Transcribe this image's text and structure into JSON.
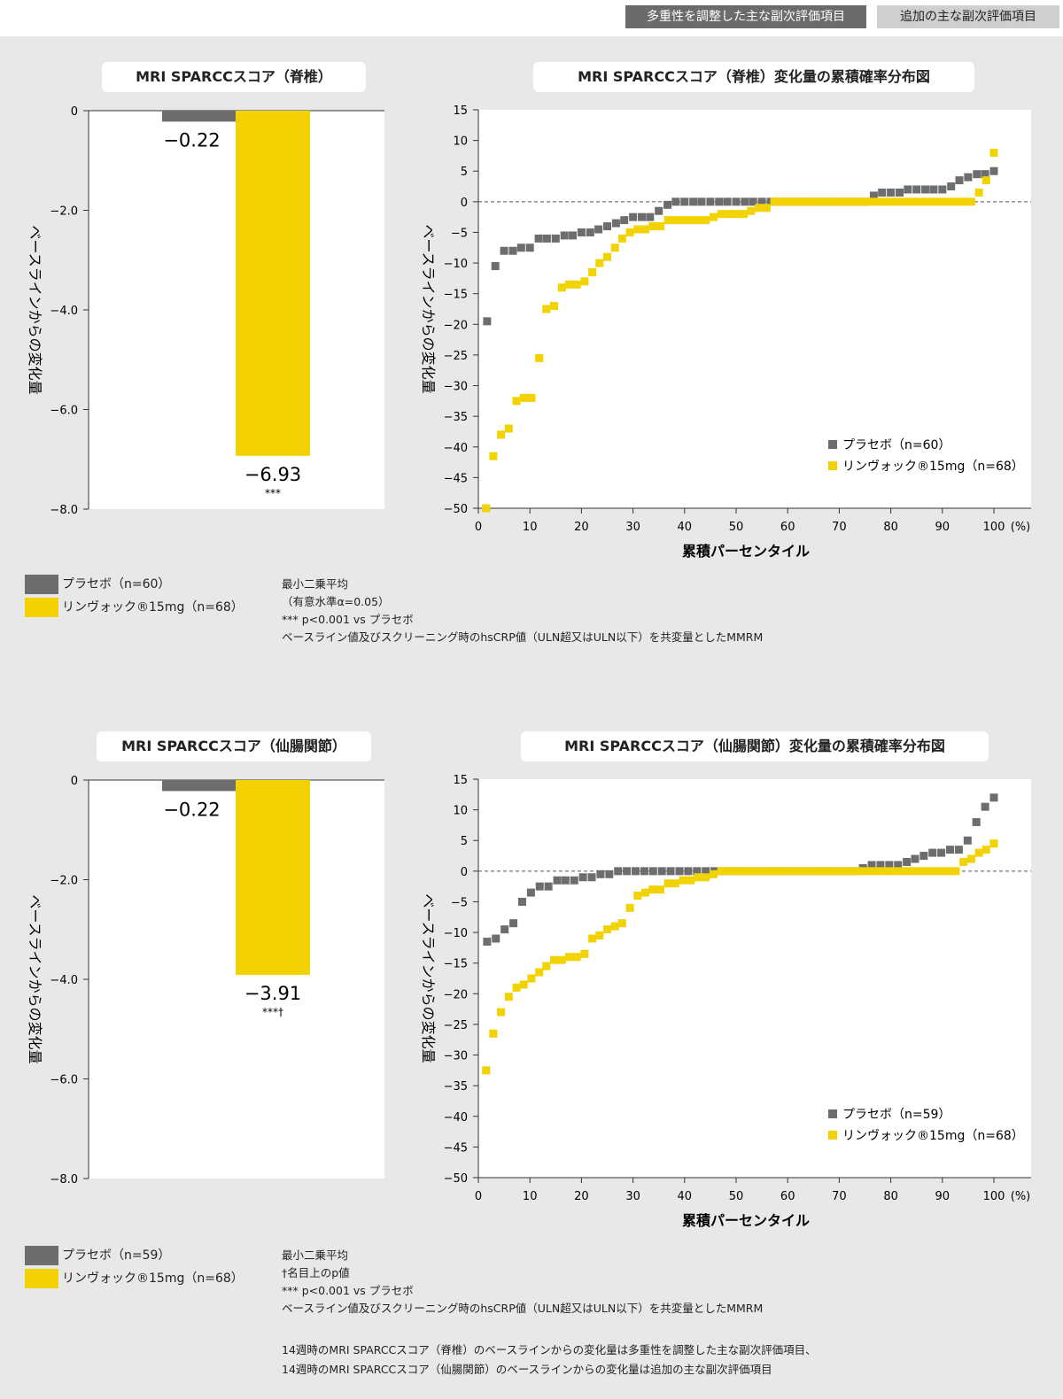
{
  "header": {
    "tag_primary": "多重性を調整した主な副次評価項目",
    "tag_secondary": "追加の主な副次評価項目"
  },
  "colors": {
    "placebo": "#6d6d6d",
    "drug": "#f2d200",
    "background": "#e8e8e8"
  },
  "chart_data": [
    {
      "type": "bar",
      "title": "MRI SPARCCスコア（脊椎）",
      "ylabel": "ベースラインからの変化量",
      "ylim": [
        -8.0,
        0
      ],
      "yticks": [
        "0",
        "−2.0",
        "−4.0",
        "−6.0",
        "−8.0"
      ],
      "series": [
        {
          "name": "プラセボ（n=60）",
          "value": -0.22,
          "label": "−0.22"
        },
        {
          "name": "リンヴォック®15mg（n=68）",
          "value": -6.93,
          "label": "−6.93",
          "annotation": "***"
        }
      ]
    },
    {
      "type": "scatter",
      "title": "MRI SPARCCスコア（脊椎）変化量の累積確率分布図",
      "xlabel": "累積パーセンタイル",
      "ylabel": "ベースラインからの変化量",
      "xlim": [
        0,
        100
      ],
      "ylim": [
        -50,
        15
      ],
      "xticks": [
        "0",
        "10",
        "20",
        "30",
        "40",
        "50",
        "60",
        "70",
        "80",
        "90",
        "100"
      ],
      "xunit": "(%)",
      "yticks": [
        "15",
        "10",
        "5",
        "0",
        "−5",
        "−10",
        "−15",
        "−20",
        "−25",
        "−30",
        "−35",
        "−40",
        "−45",
        "−50"
      ],
      "series": [
        {
          "name": "プラセボ（n=60）",
          "x": [
            1.7,
            3.3,
            5,
            6.7,
            8.3,
            10,
            11.7,
            13.3,
            15,
            16.7,
            18.3,
            20,
            21.7,
            23.3,
            25,
            26.7,
            28.3,
            30,
            31.7,
            33.3,
            35,
            36.7,
            38.3,
            40,
            41.7,
            43.3,
            45,
            46.7,
            48.3,
            50,
            51.7,
            53.3,
            55,
            56.7,
            58.3,
            60,
            61.7,
            63.3,
            65,
            66.7,
            68.3,
            70,
            71.7,
            73.3,
            75,
            76.7,
            78.3,
            80,
            81.7,
            83.3,
            85,
            86.7,
            88.3,
            90,
            91.7,
            93.3,
            95,
            96.7,
            98.3,
            100
          ],
          "y": [
            -19.5,
            -10.5,
            -8,
            -8,
            -7.5,
            -7.5,
            -6,
            -6,
            -6,
            -5.5,
            -5.5,
            -5,
            -5,
            -4.5,
            -4,
            -3.5,
            -3,
            -2.5,
            -2.5,
            -2.5,
            -1.5,
            -0.5,
            0,
            0,
            0,
            0,
            0,
            0,
            0,
            0,
            0,
            0,
            0,
            0,
            0,
            0,
            0,
            0,
            0,
            0,
            0,
            0,
            0,
            0,
            0,
            1,
            1.5,
            1.5,
            1.5,
            2,
            2,
            2,
            2,
            2,
            2.5,
            3.5,
            4,
            4.5,
            4.5,
            5
          ]
        },
        {
          "name": "リンヴォック®15mg（n=68）",
          "x": [
            1.5,
            2.9,
            4.4,
            5.9,
            7.4,
            8.8,
            10.3,
            11.8,
            13.2,
            14.7,
            16.2,
            17.6,
            19.1,
            20.6,
            22.1,
            23.5,
            25,
            26.5,
            27.9,
            29.4,
            30.9,
            32.4,
            33.8,
            35.3,
            36.8,
            38.2,
            39.7,
            41.2,
            42.6,
            44.1,
            45.6,
            47.1,
            48.5,
            50,
            51.5,
            52.9,
            54.4,
            55.9,
            57.4,
            58.8,
            60.3,
            61.8,
            63.2,
            64.7,
            66.2,
            67.6,
            69.1,
            70.6,
            72.1,
            73.5,
            75,
            76.5,
            77.9,
            79.4,
            80.9,
            82.4,
            83.8,
            85.3,
            86.8,
            88.2,
            89.7,
            91.2,
            92.6,
            94.1,
            95.6,
            97.1,
            98.5,
            100
          ],
          "y": [
            -50,
            -41.5,
            -38,
            -37,
            -32.5,
            -32,
            -32,
            -25.5,
            -17.5,
            -17,
            -14,
            -13.5,
            -13.5,
            -13,
            -11.5,
            -10,
            -9,
            -7.5,
            -6,
            -5,
            -4.5,
            -4.5,
            -4,
            -4,
            -3,
            -3,
            -3,
            -3,
            -3,
            -3,
            -2.5,
            -2,
            -2,
            -2,
            -2,
            -1.5,
            -1,
            -1,
            0,
            0,
            0,
            0,
            0,
            0,
            0,
            0,
            0,
            0,
            0,
            0,
            0,
            0,
            0,
            0,
            0,
            0,
            0,
            0,
            0,
            0,
            0,
            0,
            0,
            0,
            0,
            1.5,
            3.5,
            8
          ]
        }
      ]
    },
    {
      "type": "bar",
      "title": "MRI SPARCCスコア（仙腸関節）",
      "ylabel": "ベースラインからの変化量",
      "ylim": [
        -8.0,
        0
      ],
      "yticks": [
        "0",
        "−2.0",
        "−4.0",
        "−6.0",
        "−8.0"
      ],
      "series": [
        {
          "name": "プラセボ（n=59）",
          "value": -0.22,
          "label": "−0.22"
        },
        {
          "name": "リンヴォック®15mg（n=68）",
          "value": -3.91,
          "label": "−3.91",
          "annotation": "***†"
        }
      ]
    },
    {
      "type": "scatter",
      "title": "MRI SPARCCスコア（仙腸関節）変化量の累積確率分布図",
      "xlabel": "累積パーセンタイル",
      "ylabel": "ベースラインからの変化量",
      "xlim": [
        0,
        100
      ],
      "ylim": [
        -50,
        15
      ],
      "xticks": [
        "0",
        "10",
        "20",
        "30",
        "40",
        "50",
        "60",
        "70",
        "80",
        "90",
        "100"
      ],
      "xunit": "(%)",
      "yticks": [
        "15",
        "10",
        "5",
        "0",
        "−5",
        "−10",
        "−15",
        "−20",
        "−25",
        "−30",
        "−35",
        "−40",
        "−45",
        "−50"
      ],
      "series": [
        {
          "name": "プラセボ（n=59）",
          "x": [
            1.7,
            3.4,
            5.1,
            6.8,
            8.5,
            10.2,
            11.9,
            13.6,
            15.3,
            16.9,
            18.6,
            20.3,
            22,
            23.7,
            25.4,
            27.1,
            28.8,
            30.5,
            32.2,
            33.9,
            35.6,
            37.3,
            39,
            40.7,
            42.4,
            44.1,
            45.8,
            47.5,
            49.2,
            50.8,
            52.5,
            54.2,
            55.9,
            57.6,
            59.3,
            61,
            62.7,
            64.4,
            66.1,
            67.8,
            69.5,
            71.2,
            72.9,
            74.6,
            76.3,
            78,
            79.7,
            81.4,
            83.1,
            84.7,
            86.4,
            88.1,
            89.8,
            91.5,
            93.2,
            94.9,
            96.6,
            98.3,
            100
          ],
          "y": [
            -11.5,
            -11,
            -9.5,
            -8.5,
            -5,
            -3.5,
            -2.5,
            -2.5,
            -1.5,
            -1.5,
            -1.5,
            -1,
            -1,
            -0.5,
            -0.5,
            0,
            0,
            0,
            0,
            0,
            0,
            0,
            0,
            0,
            0,
            0,
            0,
            0,
            0,
            0,
            0,
            0,
            0,
            0,
            0,
            0,
            0,
            0,
            0,
            0,
            0,
            0,
            0,
            0.5,
            1,
            1,
            1,
            1,
            1.5,
            2,
            2.5,
            3,
            3,
            3.5,
            3.5,
            5,
            8,
            10.5,
            12
          ]
        },
        {
          "name": "リンヴォック®15mg（n=68）",
          "x": [
            1.5,
            2.9,
            4.4,
            5.9,
            7.4,
            8.8,
            10.3,
            11.8,
            13.2,
            14.7,
            16.2,
            17.6,
            19.1,
            20.6,
            22.1,
            23.5,
            25,
            26.5,
            27.9,
            29.4,
            30.9,
            32.4,
            33.8,
            35.3,
            36.8,
            38.2,
            39.7,
            41.2,
            42.6,
            44.1,
            45.6,
            47.1,
            48.5,
            50,
            51.5,
            52.9,
            54.4,
            55.9,
            57.4,
            58.8,
            60.3,
            61.8,
            63.2,
            64.7,
            66.2,
            67.6,
            69.1,
            70.6,
            72.1,
            73.5,
            75,
            76.5,
            77.9,
            79.4,
            80.9,
            82.4,
            83.8,
            85.3,
            86.8,
            88.2,
            89.7,
            91.2,
            92.6,
            94.1,
            95.6,
            97.1,
            98.5,
            100
          ],
          "y": [
            -32.5,
            -26.5,
            -23,
            -20.5,
            -19,
            -18.5,
            -17.5,
            -16.5,
            -15.5,
            -14.5,
            -14.5,
            -14,
            -14,
            -13.5,
            -11,
            -10.5,
            -9.5,
            -9,
            -8.5,
            -6,
            -4,
            -3.5,
            -3,
            -3,
            -2,
            -2,
            -1.5,
            -1.5,
            -1,
            -1,
            -0.5,
            0,
            0,
            0,
            0,
            0,
            0,
            0,
            0,
            0,
            0,
            0,
            0,
            0,
            0,
            0,
            0,
            0,
            0,
            0,
            0,
            0,
            0,
            0,
            0,
            0,
            0,
            0,
            0,
            0,
            0,
            0,
            0,
            1.5,
            2,
            3,
            3.5,
            4.5
          ]
        }
      ]
    }
  ],
  "section1": {
    "legend": {
      "placebo": "プラセボ（n=60）",
      "drug": "リンヴォック®15mg（n=68）"
    },
    "notes": [
      "最小二乗平均",
      "（有意水準α=0.05）",
      "*** p<0.001 vs プラセボ",
      "ベースライン値及びスクリーニング時のhsCRP値（ULN超又はULN以下）を共変量としたMMRM"
    ]
  },
  "section2": {
    "legend": {
      "placebo": "プラセボ（n=59）",
      "drug": "リンヴォック®15mg（n=68）"
    },
    "notes": [
      "最小二乗平均",
      "†名目上のp値",
      "*** p<0.001 vs プラセボ",
      "ベースライン値及びスクリーニング時のhsCRP値（ULN超又はULN以下）を共変量としたMMRM"
    ]
  },
  "footer": [
    "14週時のMRI SPARCCスコア（脊椎）のベースラインからの変化量は多重性を調整した主な副次評価項目、",
    "14週時のMRI SPARCCスコア（仙腸関節）のベースラインからの変化量は追加の主な副次評価項目"
  ]
}
